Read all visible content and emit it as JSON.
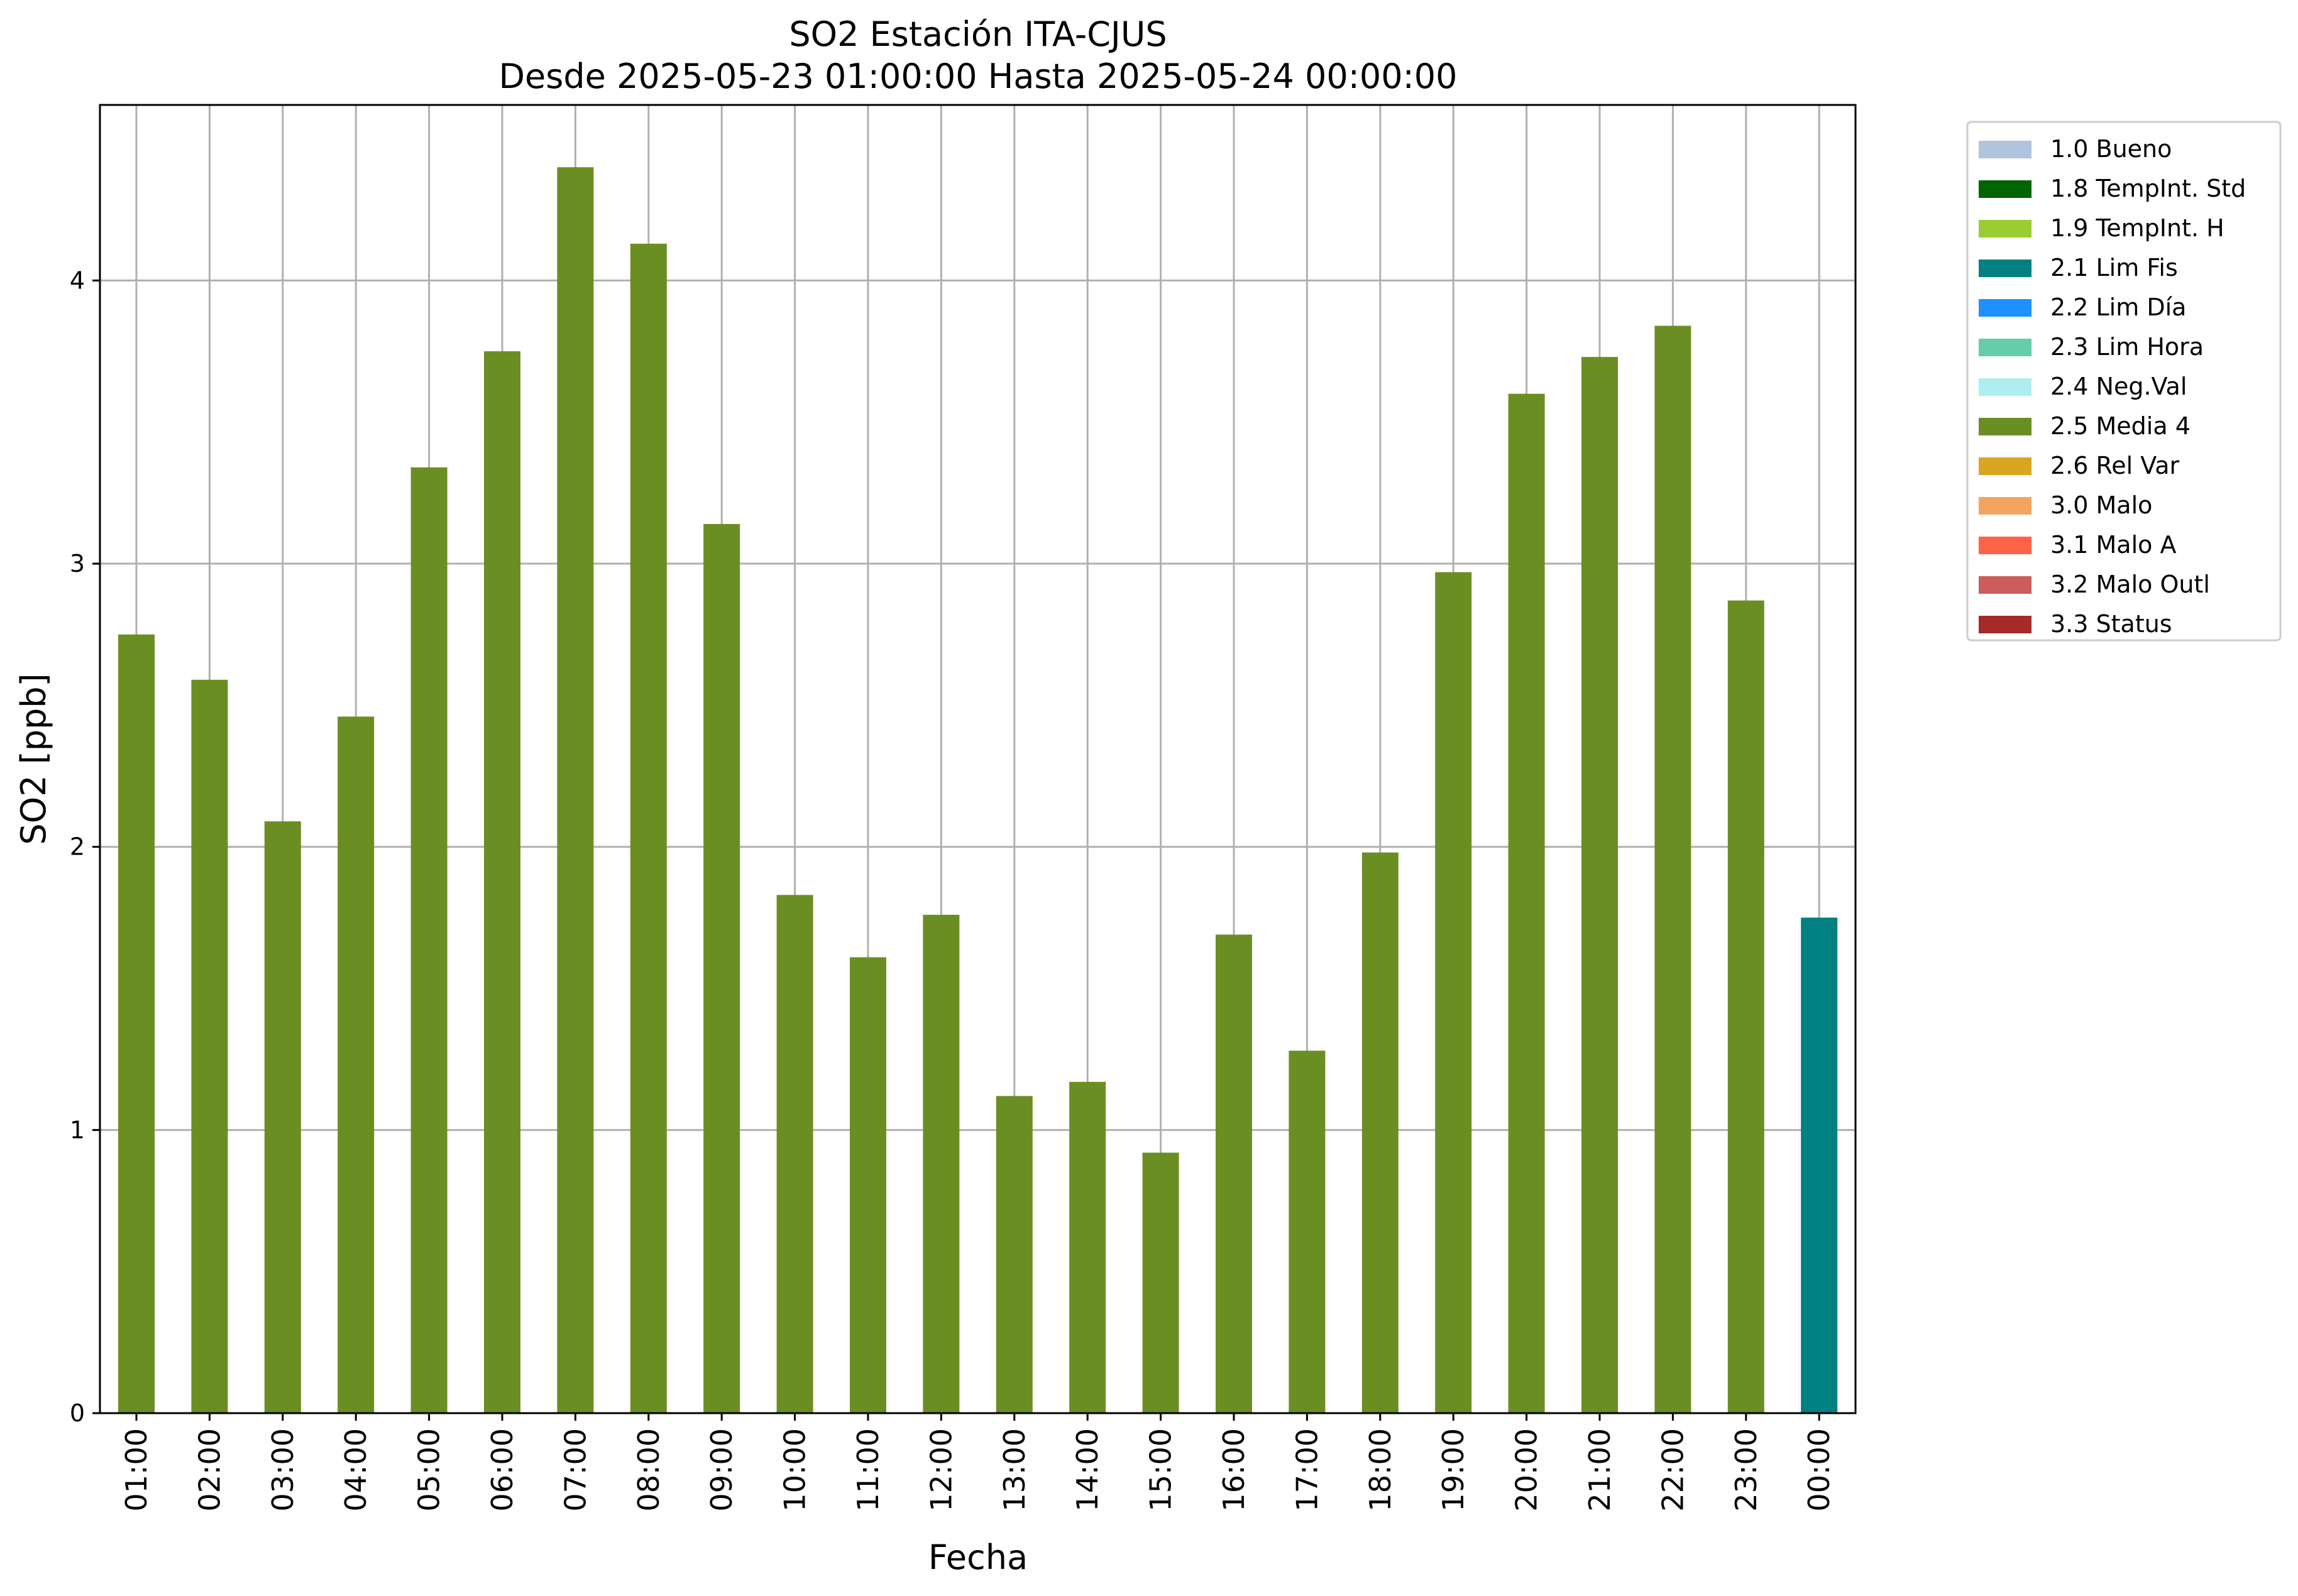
{
  "chart_data": {
    "type": "bar",
    "title": "SO2 Estación ITA-CJUS",
    "subtitle": "Desde 2025-05-23 01:00:00 Hasta 2025-05-24 00:00:00",
    "xlabel": "Fecha",
    "ylabel": "SO2 [ppb]",
    "ylim": [
      0,
      4.62
    ],
    "yticks": [
      0,
      1,
      2,
      3,
      4
    ],
    "grid": true,
    "legend_position": "outside-top-right",
    "categories": [
      "01:00",
      "02:00",
      "03:00",
      "04:00",
      "05:00",
      "06:00",
      "07:00",
      "08:00",
      "09:00",
      "10:00",
      "11:00",
      "12:00",
      "13:00",
      "14:00",
      "15:00",
      "16:00",
      "17:00",
      "18:00",
      "19:00",
      "20:00",
      "21:00",
      "22:00",
      "23:00",
      "00:00"
    ],
    "values": [
      2.75,
      2.59,
      2.09,
      2.46,
      3.34,
      3.75,
      4.4,
      4.13,
      3.14,
      1.83,
      1.61,
      1.76,
      1.12,
      1.17,
      0.92,
      1.69,
      1.28,
      1.98,
      2.97,
      3.6,
      3.73,
      3.84,
      2.87,
      1.75
    ],
    "flags": [
      "2.5 Media 4",
      "2.5 Media 4",
      "2.5 Media 4",
      "2.5 Media 4",
      "2.5 Media 4",
      "2.5 Media 4",
      "2.5 Media 4",
      "2.5 Media 4",
      "2.5 Media 4",
      "2.5 Media 4",
      "2.5 Media 4",
      "2.5 Media 4",
      "2.5 Media 4",
      "2.5 Media 4",
      "2.5 Media 4",
      "2.5 Media 4",
      "2.5 Media 4",
      "2.5 Media 4",
      "2.5 Media 4",
      "2.5 Media 4",
      "2.5 Media 4",
      "2.5 Media 4",
      "2.5 Media 4",
      "2.1 Lim Fis"
    ],
    "legend": [
      {
        "label": "1.0 Bueno",
        "color": "#b0c4de"
      },
      {
        "label": "1.8 TempInt. Std",
        "color": "#006400"
      },
      {
        "label": "1.9 TempInt. H",
        "color": "#9acd32"
      },
      {
        "label": "2.1 Lim Fis",
        "color": "#008080"
      },
      {
        "label": "2.2 Lim Día",
        "color": "#1e90ff"
      },
      {
        "label": "2.3 Lim Hora",
        "color": "#66cdaa"
      },
      {
        "label": "2.4 Neg.Val",
        "color": "#afeeee"
      },
      {
        "label": "2.5 Media 4",
        "color": "#6b8e23"
      },
      {
        "label": "2.6 Rel Var",
        "color": "#daa520"
      },
      {
        "label": "3.0 Malo",
        "color": "#f4a460"
      },
      {
        "label": "3.1 Malo A",
        "color": "#ff6347"
      },
      {
        "label": "3.2 Malo Outl",
        "color": "#cd5c5c"
      },
      {
        "label": "3.3 Status",
        "color": "#a52a2a"
      }
    ]
  }
}
